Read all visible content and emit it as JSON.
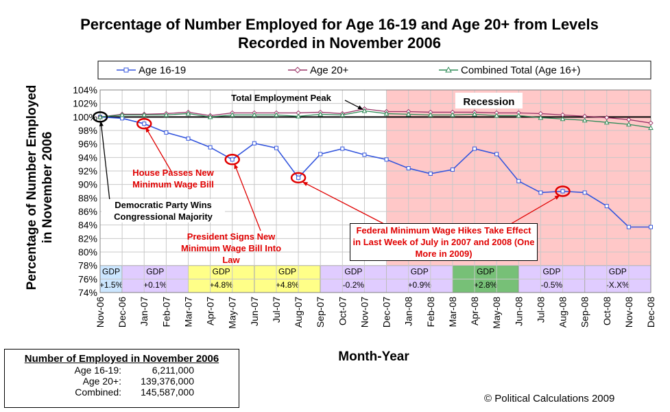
{
  "chart_data": {
    "type": "line",
    "title": "Percentage of Number Employed for Age 16-19 and Age 20+ from Levels Recorded in November 2006",
    "xlabel": "Month-Year",
    "ylabel": "Percentage of Number Employed in November 2006",
    "ylim": [
      74,
      104
    ],
    "ytick_step": 2,
    "ytick_suffix": "%",
    "categories": [
      "Nov-06",
      "Dec-06",
      "Jan-07",
      "Feb-07",
      "Mar-07",
      "Apr-07",
      "May-07",
      "Jun-07",
      "Jul-07",
      "Aug-07",
      "Sep-07",
      "Oct-07",
      "Nov-07",
      "Dec-07",
      "Jan-08",
      "Feb-08",
      "Mar-08",
      "Apr-08",
      "May-08",
      "Jun-08",
      "Jul-08",
      "Aug-08",
      "Sep-08",
      "Oct-08",
      "Nov-08",
      "Dec-08"
    ],
    "series": [
      {
        "name": "Age 16-19",
        "color": "#3355dd",
        "marker": "square",
        "values": [
          100.0,
          99.8,
          99.0,
          97.7,
          96.8,
          95.5,
          93.7,
          96.1,
          95.4,
          91.0,
          94.5,
          95.3,
          94.4,
          93.7,
          92.4,
          91.6,
          92.2,
          95.3,
          94.5,
          90.5,
          88.8,
          89.0,
          88.8,
          86.8,
          83.7,
          83.7
        ]
      },
      {
        "name": "Age 20+",
        "color": "#993366",
        "marker": "diamond",
        "values": [
          100.0,
          100.4,
          100.4,
          100.5,
          100.7,
          100.2,
          100.6,
          100.6,
          100.6,
          100.6,
          100.7,
          100.5,
          101.2,
          100.8,
          100.8,
          100.7,
          100.7,
          100.7,
          100.6,
          100.6,
          100.5,
          100.3,
          100.1,
          99.9,
          99.6,
          99.1
        ]
      },
      {
        "name": "Combined Total (Age 16+)",
        "color": "#2e8b57",
        "marker": "triangle",
        "values": [
          100.0,
          100.3,
          100.3,
          100.3,
          100.5,
          100.0,
          100.3,
          100.3,
          100.3,
          100.1,
          100.4,
          100.3,
          100.9,
          100.5,
          100.4,
          100.3,
          100.3,
          100.4,
          100.2,
          100.2,
          99.9,
          99.7,
          99.5,
          99.2,
          98.9,
          98.4
        ]
      }
    ],
    "reference_line": 100,
    "recession": {
      "label": "Recession",
      "start": "Dec-07",
      "end": "Dec-08",
      "color": "#ffc8c8"
    },
    "gdp_bands": [
      {
        "label": "GDP",
        "value": "+1.5%",
        "start": 0,
        "end": 1,
        "color": "#cce6ff"
      },
      {
        "label": "GDP",
        "value": "+0.1%",
        "start": 1,
        "end": 4,
        "color": "#e0ccff"
      },
      {
        "label": "GDP",
        "value": "+4.8%",
        "start": 4,
        "end": 7,
        "color": "#ffff88"
      },
      {
        "label": "GDP",
        "value": "+4.8%",
        "start": 7,
        "end": 10,
        "color": "#ffff88"
      },
      {
        "label": "GDP",
        "value": "-0.2%",
        "start": 10,
        "end": 13,
        "color": "#e0ccff"
      },
      {
        "label": "GDP",
        "value": "+0.9%",
        "start": 13,
        "end": 16,
        "color": "#e0ccff"
      },
      {
        "label": "GDP",
        "value": "+2.8%",
        "start": 16,
        "end": 19,
        "color": "#77c077"
      },
      {
        "label": "GDP",
        "value": "-0.5%",
        "start": 19,
        "end": 22,
        "color": "#e0ccff"
      },
      {
        "label": "GDP",
        "value": "-X.X%",
        "start": 22,
        "end": 25,
        "color": "#e0ccff"
      }
    ],
    "legend_position": "top",
    "grid": true,
    "annotations": {
      "peak": "Total Employment Peak",
      "house": "House Passes New Minimum Wage Bill",
      "democratic": "Democratic Party Wins Congressional Majority",
      "president": "President Signs New Minimum Wage Bill Into Law",
      "federal": "Federal Minimum Wage Hikes Take Effect in Last Week of July in 2007 and 2008 (One More in 2009)"
    }
  },
  "infobox": {
    "title": "Number of Employed in November 2006",
    "rows": [
      {
        "label": "Age 16-19:",
        "value": "6,211,000"
      },
      {
        "label": "Age 20+:",
        "value": "139,376,000"
      },
      {
        "label": "Combined:",
        "value": "145,587,000"
      }
    ]
  },
  "copyright": "© Political Calculations 2009"
}
